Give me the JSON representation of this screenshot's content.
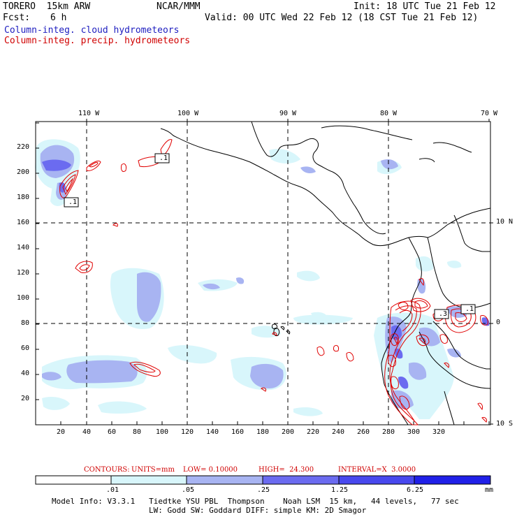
{
  "header": {
    "model": "TORERO  15km ARW",
    "org": "NCAR/MMM",
    "init": "Init: 18 UTC Tue 21 Feb 12",
    "fcst_label": "Fcst:",
    "fcst_value": "6 h",
    "valid": "Valid: 00 UTC Wed 22 Feb 12 (18 CST Tue 21 Feb 12)",
    "field1": "Column-integ. cloud hydrometeors",
    "field2": "Column-integ. precip. hydrometeors"
  },
  "axes": {
    "x_ticks": [
      "20",
      "40",
      "60",
      "80",
      "100",
      "120",
      "140",
      "160",
      "180",
      "200",
      "220",
      "240",
      "260",
      "280",
      "300",
      "320"
    ],
    "y_ticks": [
      "20",
      "40",
      "60",
      "80",
      "100",
      "120",
      "140",
      "160",
      "180",
      "200",
      "220"
    ],
    "lon_labels": [
      "110 W",
      "100 W",
      "90 W",
      "80 W",
      "70 W"
    ],
    "lat_labels": [
      "10 N",
      "0",
      "10 S"
    ]
  },
  "contour_labels": [
    ".1",
    ".1",
    ".3",
    ".1"
  ],
  "contours_info": {
    "label": "CONTOURS:",
    "units": "UNITS=mm",
    "low": "LOW= 0.10000",
    "high": "HIGH=  24.300",
    "interval": "INTERVAL=X  3.0000"
  },
  "colorbar": {
    "tick_labels": [
      ".01",
      ".05",
      ".25",
      "1.25",
      "6.25"
    ],
    "unit": "mm",
    "colors": [
      "#ffffff",
      "#d8f6fb",
      "#a8b4f2",
      "#6b6bf0",
      "#2020e8"
    ]
  },
  "model_info": {
    "line1": "Model Info: V3.3.1   Tiedtke YSU PBL  Thompson    Noah LSM  15 km,   44 levels,   77 sec",
    "line2": "LW: Godd SW: Goddard DIFF: simple KM: 2D Smagor"
  },
  "colors": {
    "cloud_light": "#d8f6fb",
    "cloud_mid": "#a8b4f2",
    "cloud_dark": "#6b6bf0",
    "precip_contour": "#e00000",
    "land_outline": "#000000"
  }
}
